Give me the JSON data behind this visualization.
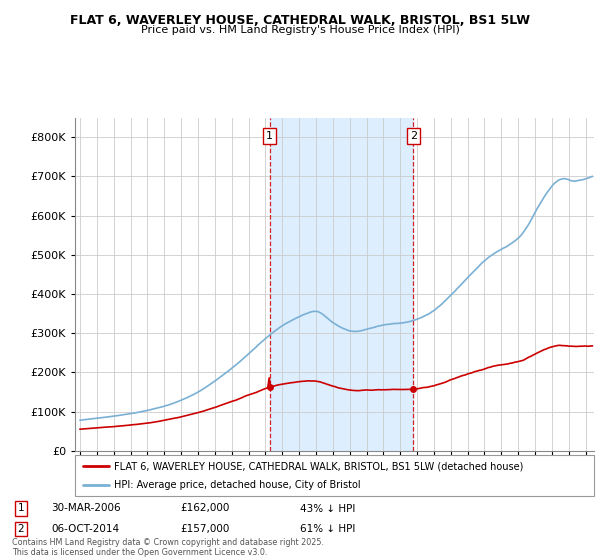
{
  "title1": "FLAT 6, WAVERLEY HOUSE, CATHEDRAL WALK, BRISTOL, BS1 5LW",
  "title2": "Price paid vs. HM Land Registry's House Price Index (HPI)",
  "sale1_date": "30-MAR-2006",
  "sale1_price": 162000,
  "sale1_label": "43% ↓ HPI",
  "sale2_date": "06-OCT-2014",
  "sale2_price": 157000,
  "sale2_label": "61% ↓ HPI",
  "legend_property": "FLAT 6, WAVERLEY HOUSE, CATHEDRAL WALK, BRISTOL, BS1 5LW (detached house)",
  "legend_hpi": "HPI: Average price, detached house, City of Bristol",
  "footnote": "Contains HM Land Registry data © Crown copyright and database right 2025.\nThis data is licensed under the Open Government Licence v3.0.",
  "property_color": "#cc0000",
  "hpi_color": "#7ab0d4",
  "shade_color": "#ddeeff",
  "vline_color": "#cc0000",
  "ylim": [
    0,
    850000
  ],
  "yticks": [
    0,
    100000,
    200000,
    300000,
    400000,
    500000,
    600000,
    700000,
    800000
  ],
  "sale1_x": 2006.25,
  "sale2_x": 2014.77,
  "xlim_left": 1994.7,
  "xlim_right": 2025.5
}
